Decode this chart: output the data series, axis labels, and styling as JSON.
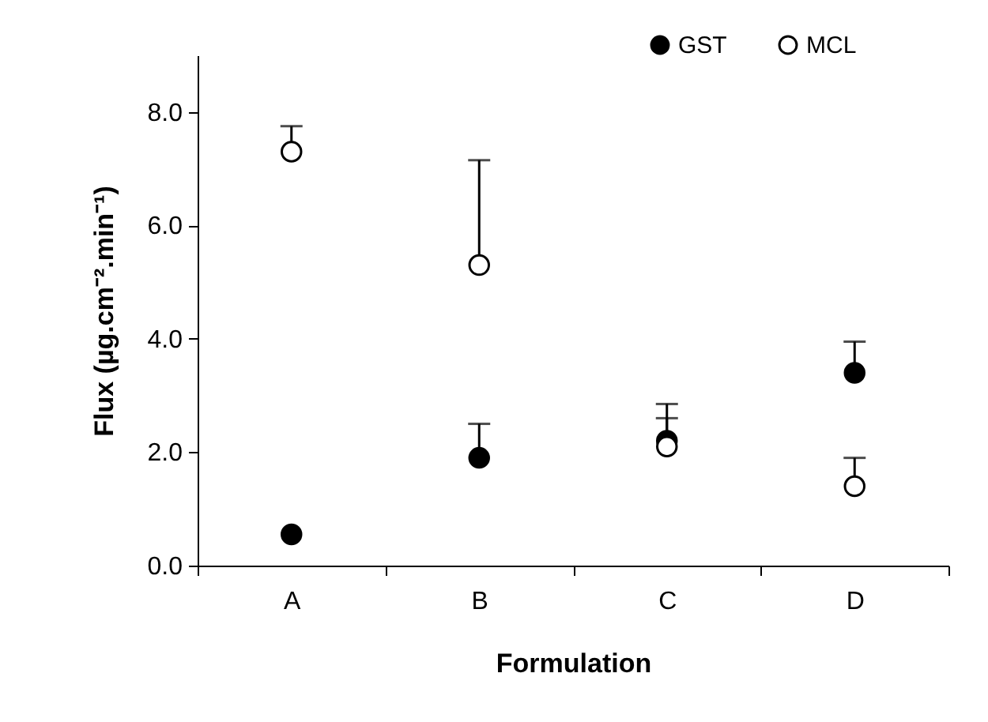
{
  "chart_data": {
    "type": "scatter",
    "xlabel": "Formulation",
    "ylabel": "Flux (µg.cm⁻².min⁻¹)",
    "categories": [
      "A",
      "B",
      "C",
      "D"
    ],
    "series": [
      {
        "name": "GST",
        "color": "#000000",
        "values": [
          0.55,
          1.9,
          2.2,
          3.4
        ],
        "errors": [
          null,
          [
            1.9,
            2.5
          ],
          [
            2.2,
            2.85
          ],
          [
            3.4,
            3.95
          ]
        ]
      },
      {
        "name": "MCL",
        "color": "#ffffff",
        "values": [
          7.3,
          5.3,
          2.1,
          1.4
        ],
        "errors": [
          [
            7.3,
            7.75
          ],
          [
            5.3,
            7.15
          ],
          [
            2.1,
            2.6
          ],
          [
            1.4,
            1.9
          ]
        ]
      }
    ],
    "ylim": [
      0,
      9
    ],
    "yticks": [
      {
        "value": 0,
        "label": "0.0"
      },
      {
        "value": 2,
        "label": "2.0"
      },
      {
        "value": 4,
        "label": "4.0"
      },
      {
        "value": 6,
        "label": "6.0"
      },
      {
        "value": 8,
        "label": "8.0"
      }
    ],
    "grid": false,
    "legend": "top right",
    "marker": "circle"
  }
}
